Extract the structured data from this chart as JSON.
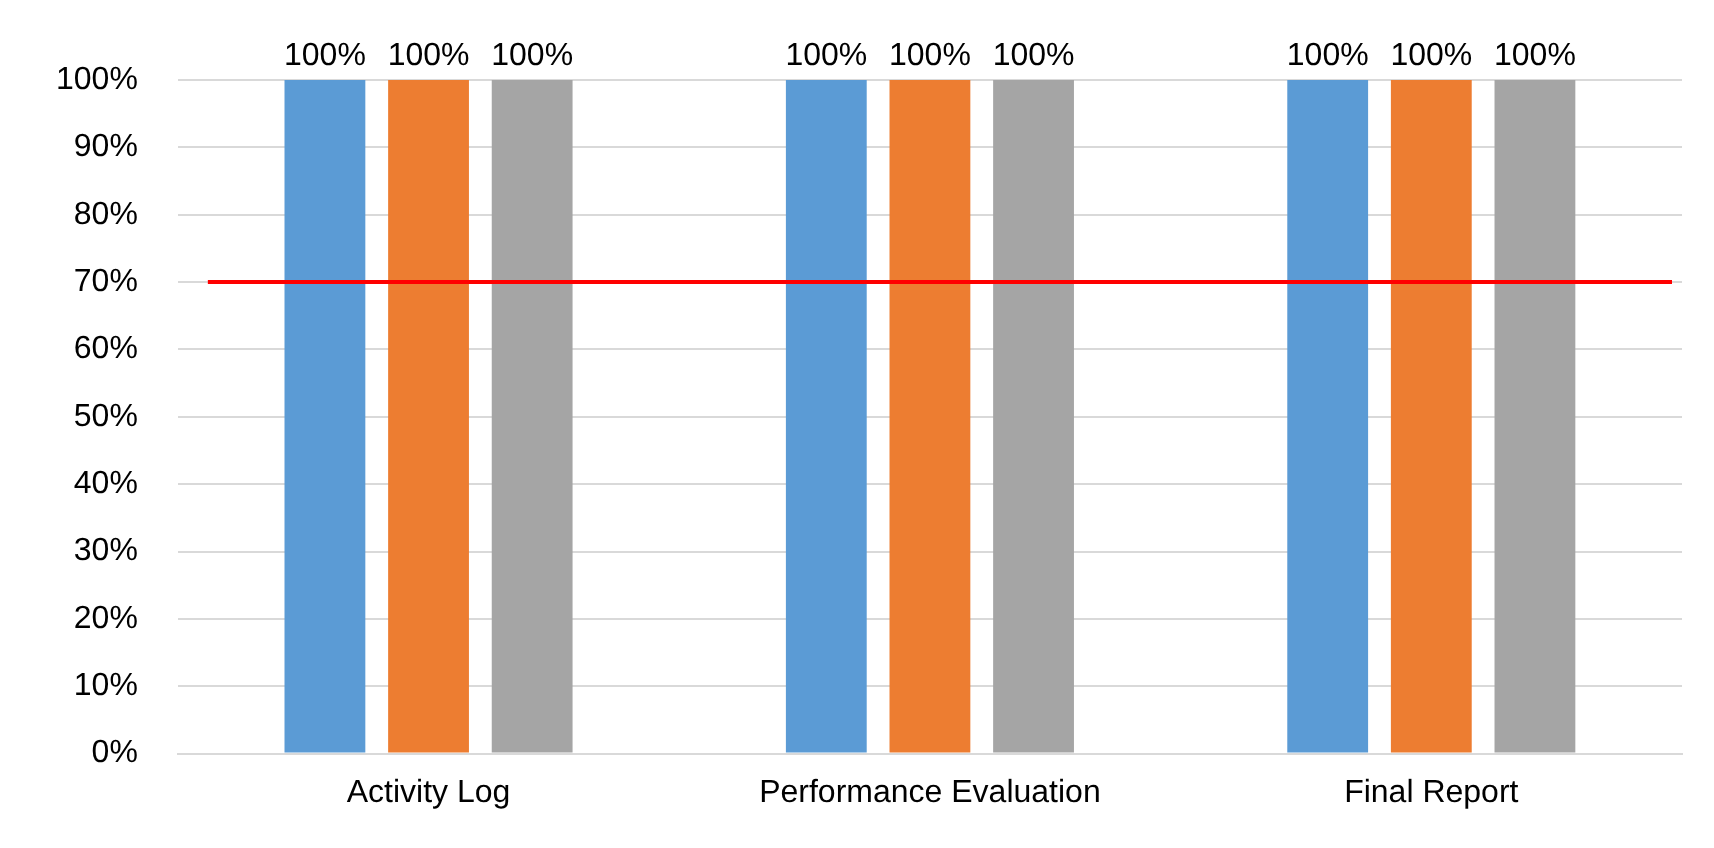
{
  "chart_data": {
    "type": "bar",
    "categories": [
      "Activity Log",
      "Performance Evaluation",
      "Final Report"
    ],
    "series": [
      {
        "color": "#5b9bd5",
        "values": [
          100,
          100,
          100
        ],
        "value_labels": [
          "100%",
          "100%",
          "100%"
        ]
      },
      {
        "color": "#ed7d31",
        "values": [
          100,
          100,
          100
        ],
        "value_labels": [
          "100%",
          "100%",
          "100%"
        ]
      },
      {
        "color": "#a5a5a5",
        "values": [
          100,
          100,
          100
        ],
        "value_labels": [
          "100%",
          "100%",
          "100%"
        ]
      }
    ],
    "ylim": [
      0,
      100
    ],
    "yticks": [
      {
        "value": 0,
        "label": "0%"
      },
      {
        "value": 10,
        "label": "10%"
      },
      {
        "value": 20,
        "label": "20%"
      },
      {
        "value": 30,
        "label": "30%"
      },
      {
        "value": 40,
        "label": "40%"
      },
      {
        "value": 50,
        "label": "50%"
      },
      {
        "value": 60,
        "label": "60%"
      },
      {
        "value": 70,
        "label": "70%"
      },
      {
        "value": 80,
        "label": "80%"
      },
      {
        "value": 90,
        "label": "90%"
      },
      {
        "value": 100,
        "label": "100%"
      }
    ],
    "ref_lines": [
      {
        "axis": "y",
        "value": 70,
        "color": "#ff0000"
      }
    ],
    "grid": "y",
    "legend": false
  }
}
